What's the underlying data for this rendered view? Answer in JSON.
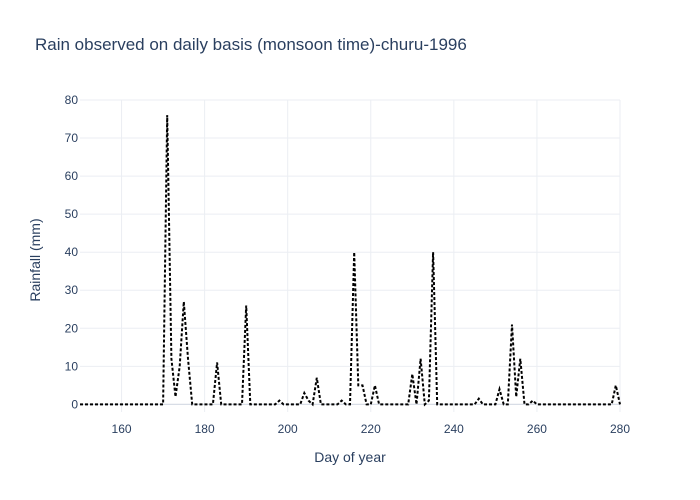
{
  "chart_data": {
    "type": "line",
    "title": "Rain observed on daily basis (monsoon time)-churu-1996",
    "xlabel": "Day of year",
    "ylabel": "Rainfall (mm)",
    "xlim": [
      150,
      280
    ],
    "ylim": [
      -2,
      80
    ],
    "xticks": [
      160,
      180,
      200,
      220,
      240,
      260,
      280
    ],
    "yticks": [
      0,
      10,
      20,
      30,
      40,
      50,
      60,
      70,
      80
    ],
    "grid": true,
    "legend": "none",
    "line_style": "dotted",
    "line_color": "#000000",
    "series": [
      {
        "x": [
          150,
          151,
          152,
          153,
          154,
          155,
          156,
          157,
          158,
          159,
          160,
          161,
          162,
          163,
          164,
          165,
          166,
          167,
          168,
          169,
          170,
          171,
          172,
          173,
          174,
          175,
          176,
          177,
          178,
          179,
          180,
          181,
          182,
          183,
          184,
          185,
          186,
          187,
          188,
          189,
          190,
          191,
          192,
          193,
          194,
          195,
          196,
          197,
          198,
          199,
          200,
          201,
          202,
          203,
          204,
          205,
          206,
          207,
          208,
          209,
          210,
          211,
          212,
          213,
          214,
          215,
          216,
          217,
          218,
          219,
          220,
          221,
          222,
          223,
          224,
          225,
          226,
          227,
          228,
          229,
          230,
          231,
          232,
          233,
          234,
          235,
          236,
          237,
          238,
          239,
          240,
          241,
          242,
          243,
          244,
          245,
          246,
          247,
          248,
          249,
          250,
          251,
          252,
          253,
          254,
          255,
          256,
          257,
          258,
          259,
          260,
          261,
          262,
          263,
          264,
          265,
          266,
          267,
          268,
          269,
          270,
          271,
          272,
          273,
          274,
          275,
          276,
          277,
          278,
          279,
          280
        ],
        "values": [
          0,
          0,
          0,
          0,
          0,
          0,
          0,
          0,
          0,
          0,
          0,
          0,
          0,
          0,
          0,
          0,
          0,
          0,
          0,
          0,
          0,
          76,
          12,
          2,
          10,
          27,
          12,
          0,
          0,
          0,
          0,
          0,
          0,
          11,
          0,
          0,
          0,
          0,
          0,
          0,
          26,
          0,
          0,
          0,
          0,
          0,
          0,
          0,
          1,
          0,
          0,
          0,
          0,
          0,
          3,
          1,
          0,
          7,
          0,
          0,
          0,
          0,
          0,
          1,
          0,
          0,
          40,
          5,
          5,
          0,
          0,
          5,
          0,
          0,
          0,
          0,
          0,
          0,
          0,
          0,
          8,
          0,
          12,
          0,
          1,
          40,
          0,
          0,
          0,
          0,
          0,
          0,
          0,
          0,
          0,
          0,
          1.5,
          0,
          0,
          0,
          0,
          4,
          0,
          0,
          21,
          2,
          12,
          0,
          0,
          1,
          0,
          0,
          0,
          0,
          0,
          0,
          0,
          0,
          0,
          0,
          0,
          0,
          0,
          0,
          0,
          0,
          0,
          0,
          0,
          5,
          0
        ]
      }
    ]
  }
}
